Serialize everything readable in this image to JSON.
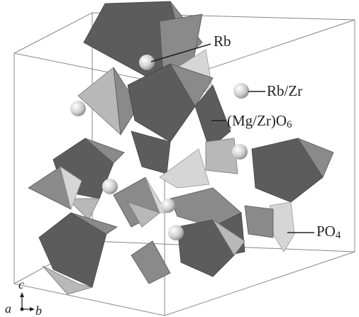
{
  "labels": {
    "rb": "Rb",
    "rb_zr": "Rb/Zr",
    "mgzr_o6": {
      "text": "(Mg/Zr)O",
      "subscript": "6"
    },
    "po4": {
      "text": "PO",
      "subscript": "4"
    }
  },
  "axes": {
    "c": "c",
    "a": "a",
    "b": "b"
  }
}
